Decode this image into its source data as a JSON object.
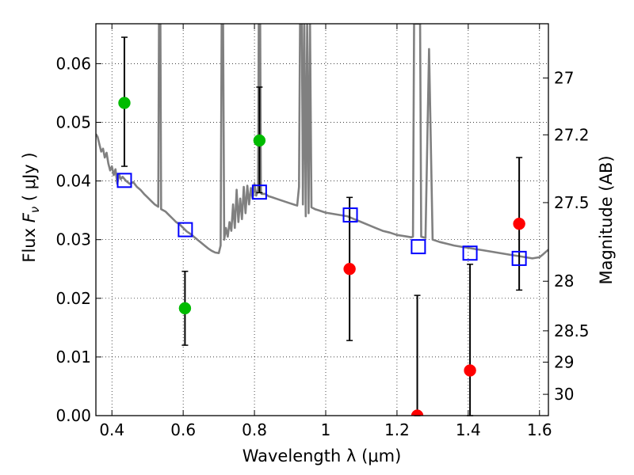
{
  "chart_data": {
    "type": "scatter",
    "xlabel": "Wavelength  λ (μm)",
    "ylabel": "Flux  Fν  ( μJy )",
    "ylabel_parts": {
      "prefix": "Flux  ",
      "symbol": "F",
      "subscript": "ν",
      "suffix": "  ( μJy )"
    },
    "y2label": "Magnitude (AB)",
    "xlim": [
      0.355,
      1.625
    ],
    "ylim": [
      0.0,
      0.0668
    ],
    "grid": true,
    "x_ticks": [
      {
        "value": 0.4,
        "label": "0.4"
      },
      {
        "value": 0.6,
        "label": "0.6"
      },
      {
        "value": 0.8,
        "label": "0.8"
      },
      {
        "value": 1.0,
        "label": "1"
      },
      {
        "value": 1.2,
        "label": "1.2"
      },
      {
        "value": 1.4,
        "label": "1.4"
      },
      {
        "value": 1.6,
        "label": "1.6"
      }
    ],
    "y_ticks": [
      {
        "value": 0.0,
        "label": "0.00"
      },
      {
        "value": 0.01,
        "label": "0.01"
      },
      {
        "value": 0.02,
        "label": "0.02"
      },
      {
        "value": 0.03,
        "label": "0.03"
      },
      {
        "value": 0.04,
        "label": "0.04"
      },
      {
        "value": 0.05,
        "label": "0.05"
      },
      {
        "value": 0.06,
        "label": "0.06"
      }
    ],
    "y2_ticks": [
      {
        "magnitude": 27.0,
        "label": "27"
      },
      {
        "magnitude": 27.2,
        "label": "27.2"
      },
      {
        "magnitude": 27.5,
        "label": "27.5"
      },
      {
        "magnitude": 28.0,
        "label": "28"
      },
      {
        "magnitude": 28.5,
        "label": "28.5"
      },
      {
        "magnitude": 29.0,
        "label": "29"
      },
      {
        "magnitude": 30.0,
        "label": "30"
      }
    ],
    "series": [
      {
        "style": "circle-green",
        "color": "#00bb00",
        "points": [
          {
            "x": 0.435,
            "y": 0.0533,
            "err_low": 0.0425,
            "err_high": 0.0645
          },
          {
            "x": 0.605,
            "y": 0.0183,
            "err_low": 0.012,
            "err_high": 0.0246
          },
          {
            "x": 0.814,
            "y": 0.0469,
            "err_low": 0.038,
            "err_high": 0.056
          }
        ]
      },
      {
        "style": "circle-red",
        "color": "#ff0000",
        "points": [
          {
            "x": 1.067,
            "y": 0.025,
            "err_low": 0.0128,
            "err_high": 0.0372
          },
          {
            "x": 1.257,
            "y": 0.0,
            "err_low": 0.0,
            "err_high": 0.0205
          },
          {
            "x": 1.405,
            "y": 0.0077,
            "err_low": 0.0,
            "err_high": 0.0258
          },
          {
            "x": 1.543,
            "y": 0.0327,
            "err_low": 0.0214,
            "err_high": 0.044
          }
        ]
      },
      {
        "style": "square-blue-open",
        "color": "#0000ff",
        "points": [
          {
            "x": 0.435,
            "y": 0.0401
          },
          {
            "x": 0.606,
            "y": 0.0317
          },
          {
            "x": 0.814,
            "y": 0.0381
          },
          {
            "x": 1.069,
            "y": 0.0342
          },
          {
            "x": 1.26,
            "y": 0.0288
          },
          {
            "x": 1.405,
            "y": 0.0277
          },
          {
            "x": 1.543,
            "y": 0.0268
          }
        ]
      }
    ],
    "model_spectrum": {
      "color": "#808080",
      "points": [
        [
          0.355,
          0.048
        ],
        [
          0.36,
          0.0475
        ],
        [
          0.365,
          0.0462
        ],
        [
          0.37,
          0.045
        ],
        [
          0.375,
          0.0455
        ],
        [
          0.38,
          0.044
        ],
        [
          0.385,
          0.0448
        ],
        [
          0.39,
          0.043
        ],
        [
          0.395,
          0.0418
        ],
        [
          0.4,
          0.0425
        ],
        [
          0.405,
          0.041
        ],
        [
          0.41,
          0.042
        ],
        [
          0.415,
          0.0395
        ],
        [
          0.42,
          0.0412
        ],
        [
          0.425,
          0.0403
        ],
        [
          0.43,
          0.0407
        ],
        [
          0.44,
          0.04
        ],
        [
          0.45,
          0.0395
        ],
        [
          0.46,
          0.0398
        ],
        [
          0.47,
          0.039
        ],
        [
          0.48,
          0.0385
        ],
        [
          0.49,
          0.0378
        ],
        [
          0.5,
          0.0372
        ],
        [
          0.51,
          0.0366
        ],
        [
          0.52,
          0.036
        ],
        [
          0.53,
          0.0356
        ],
        [
          0.532,
          0.0668
        ],
        [
          0.536,
          0.0668
        ],
        [
          0.538,
          0.0352
        ],
        [
          0.55,
          0.0348
        ],
        [
          0.56,
          0.0342
        ],
        [
          0.57,
          0.0336
        ],
        [
          0.58,
          0.033
        ],
        [
          0.59,
          0.0326
        ],
        [
          0.6,
          0.032
        ],
        [
          0.61,
          0.0314
        ],
        [
          0.62,
          0.031
        ],
        [
          0.63,
          0.0305
        ],
        [
          0.64,
          0.03
        ],
        [
          0.65,
          0.0295
        ],
        [
          0.66,
          0.029
        ],
        [
          0.67,
          0.0285
        ],
        [
          0.68,
          0.0281
        ],
        [
          0.69,
          0.0278
        ],
        [
          0.7,
          0.0277
        ],
        [
          0.705,
          0.029
        ],
        [
          0.708,
          0.0668
        ],
        [
          0.712,
          0.0668
        ],
        [
          0.715,
          0.03
        ],
        [
          0.72,
          0.032
        ],
        [
          0.725,
          0.0305
        ],
        [
          0.73,
          0.033
        ],
        [
          0.735,
          0.0315
        ],
        [
          0.74,
          0.036
        ],
        [
          0.745,
          0.032
        ],
        [
          0.75,
          0.0385
        ],
        [
          0.755,
          0.033
        ],
        [
          0.76,
          0.037
        ],
        [
          0.765,
          0.0335
        ],
        [
          0.77,
          0.039
        ],
        [
          0.775,
          0.0345
        ],
        [
          0.78,
          0.0392
        ],
        [
          0.785,
          0.036
        ],
        [
          0.79,
          0.0388
        ],
        [
          0.795,
          0.037
        ],
        [
          0.8,
          0.0395
        ],
        [
          0.805,
          0.0375
        ],
        [
          0.81,
          0.0385
        ],
        [
          0.812,
          0.0668
        ],
        [
          0.816,
          0.0668
        ],
        [
          0.818,
          0.038
        ],
        [
          0.82,
          0.0378
        ],
        [
          0.83,
          0.0378
        ],
        [
          0.84,
          0.0374
        ],
        [
          0.85,
          0.0372
        ],
        [
          0.86,
          0.037
        ],
        [
          0.87,
          0.0368
        ],
        [
          0.88,
          0.0366
        ],
        [
          0.89,
          0.0364
        ],
        [
          0.9,
          0.0362
        ],
        [
          0.91,
          0.036
        ],
        [
          0.92,
          0.0358
        ],
        [
          0.925,
          0.039
        ],
        [
          0.928,
          0.0668
        ],
        [
          0.933,
          0.0668
        ],
        [
          0.936,
          0.036
        ],
        [
          0.94,
          0.0668
        ],
        [
          0.944,
          0.034
        ],
        [
          0.948,
          0.0668
        ],
        [
          0.952,
          0.0345
        ],
        [
          0.956,
          0.0668
        ],
        [
          0.96,
          0.0355
        ],
        [
          0.97,
          0.0352
        ],
        [
          0.98,
          0.035
        ],
        [
          0.99,
          0.0348
        ],
        [
          1.0,
          0.0346
        ],
        [
          1.02,
          0.0344
        ],
        [
          1.04,
          0.0342
        ],
        [
          1.06,
          0.034
        ],
        [
          1.08,
          0.0335
        ],
        [
          1.1,
          0.033
        ],
        [
          1.12,
          0.0325
        ],
        [
          1.14,
          0.032
        ],
        [
          1.16,
          0.0315
        ],
        [
          1.18,
          0.0312
        ],
        [
          1.2,
          0.0308
        ],
        [
          1.22,
          0.0306
        ],
        [
          1.24,
          0.0304
        ],
        [
          1.245,
          0.0305
        ],
        [
          1.248,
          0.0668
        ],
        [
          1.265,
          0.0668
        ],
        [
          1.268,
          0.0305
        ],
        [
          1.28,
          0.0303
        ],
        [
          1.29,
          0.0625
        ],
        [
          1.3,
          0.03
        ],
        [
          1.32,
          0.0296
        ],
        [
          1.34,
          0.0293
        ],
        [
          1.36,
          0.029
        ],
        [
          1.38,
          0.0288
        ],
        [
          1.4,
          0.0286
        ],
        [
          1.42,
          0.0284
        ],
        [
          1.44,
          0.0282
        ],
        [
          1.46,
          0.028
        ],
        [
          1.48,
          0.0278
        ],
        [
          1.5,
          0.0276
        ],
        [
          1.52,
          0.0274
        ],
        [
          1.54,
          0.0272
        ],
        [
          1.56,
          0.027
        ],
        [
          1.58,
          0.0268
        ],
        [
          1.6,
          0.027
        ],
        [
          1.61,
          0.0275
        ],
        [
          1.625,
          0.0283
        ]
      ]
    }
  }
}
